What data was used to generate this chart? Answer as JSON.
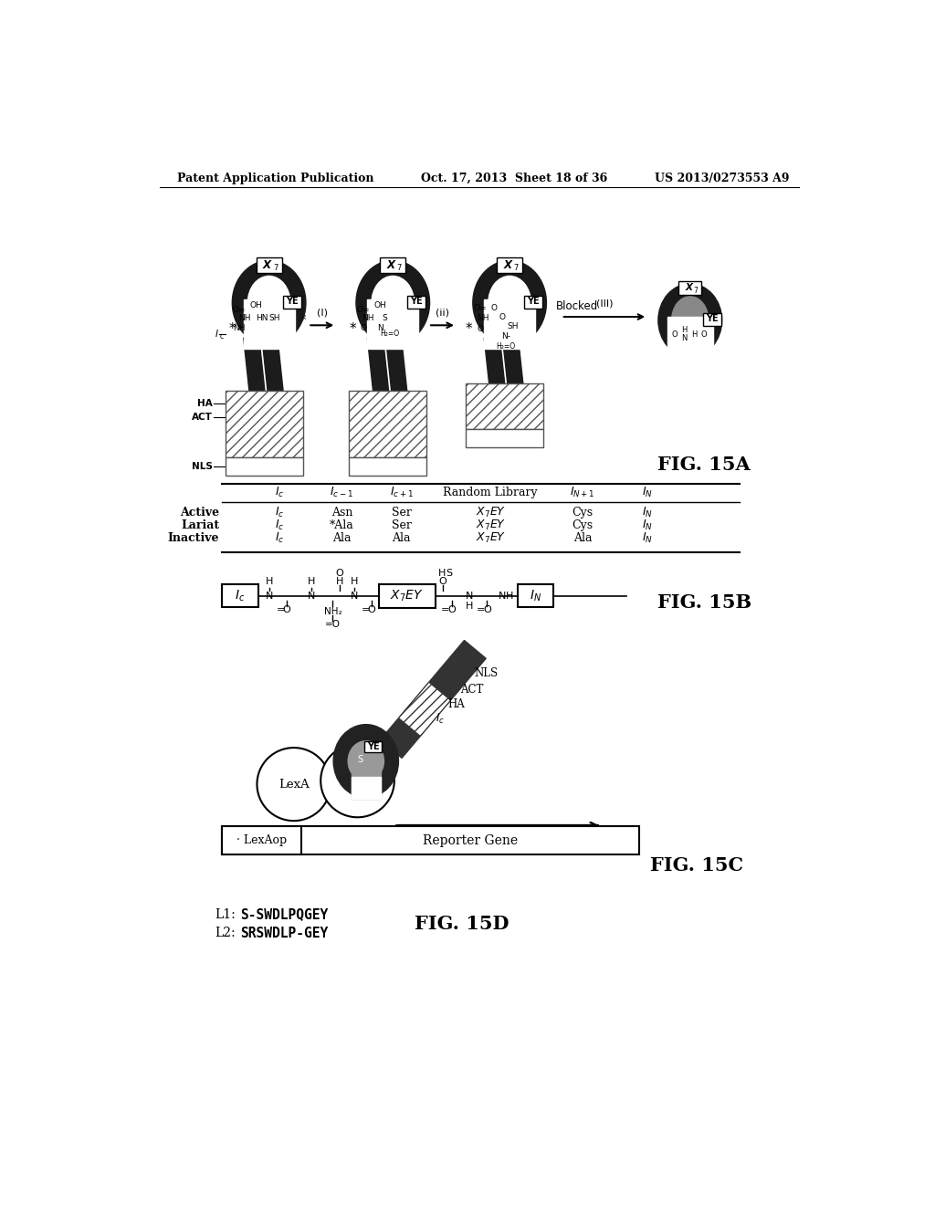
{
  "background_color": "#ffffff",
  "header_left": "Patent Application Publication",
  "header_center": "Oct. 17, 2013  Sheet 18 of 36",
  "header_right": "US 2013/0273553 A9",
  "fig15a_label": "FIG. 15A",
  "fig15b_label": "FIG. 15B",
  "fig15c_label": "FIG. 15C",
  "fig15d_label": "FIG. 15D",
  "fig15d_line1": "L1:   S-SWDLPQGEY",
  "fig15d_line2": "L2:   SRSWDLP-GEY"
}
